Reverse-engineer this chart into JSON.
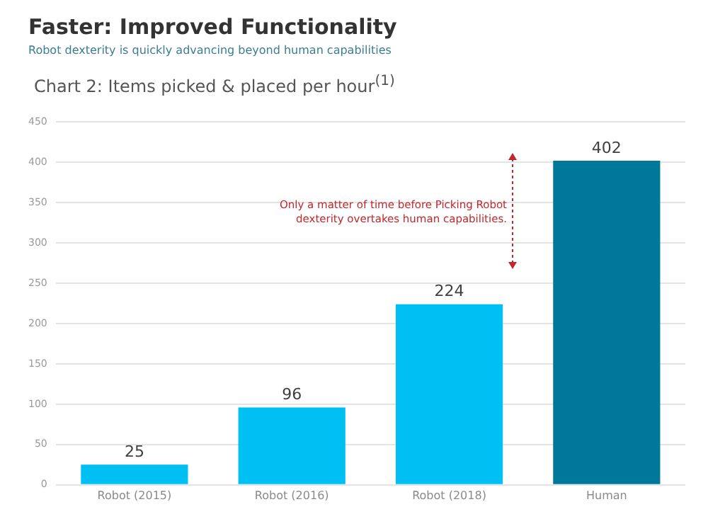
{
  "chart_data": {
    "type": "bar",
    "title": "Faster: Improved Functionality",
    "subtitle": "Robot dexterity is quickly advancing beyond human capabilities",
    "annotations": [
      "Chart 2: Items picked & placed per hour$^{(1)}$",
      "Only a matter of time before Picking Robot dexterity overtakes human capabilities."
    ],
    "categories": [
      "Robot (2015)",
      "Robot (2016)",
      "Robot (2018)",
      "Human"
    ],
    "values": [
      25,
      96,
      224,
      402
    ],
    "colors": [
      "#00bff3",
      "#00bff3",
      "#00bff3",
      "#00789a"
    ],
    "ylim": [
      0,
      450
    ],
    "yticks": [
      0,
      50,
      100,
      150,
      200,
      250,
      300,
      350,
      400,
      450
    ],
    "grid": "y",
    "data_labels": true
  }
}
